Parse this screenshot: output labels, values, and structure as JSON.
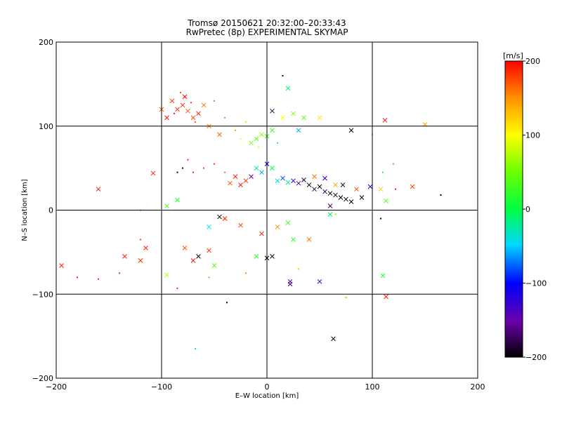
{
  "title_line1": "Tromsø 20150621 20:32:00–20:33:43",
  "title_line2": "RwPretec (8p) EXPERIMENTAL SKYMAP",
  "chart_data": {
    "type": "scatter",
    "xlabel": "E–W location [km]",
    "ylabel": "N–S location [km]",
    "xlim": [
      -200,
      200
    ],
    "ylim": [
      -200,
      200
    ],
    "xticks": [
      -200,
      -100,
      0,
      100,
      200
    ],
    "yticks": [
      -200,
      -100,
      0,
      100,
      200
    ],
    "x_tick_labels": [
      "−200",
      "−100",
      "0",
      "100",
      "200"
    ],
    "y_tick_labels": [
      "−200",
      "−100",
      "0",
      "100",
      "200"
    ],
    "grid": true,
    "colorbar": {
      "label": "[m/s]",
      "range": [
        -200,
        200
      ],
      "ticks": [
        -200,
        -100,
        0,
        100,
        200
      ],
      "tick_labels": [
        "−200",
        "−100",
        "0",
        "100",
        "200"
      ]
    },
    "points": [
      {
        "x": -85,
        "y": 120,
        "v": 180,
        "m": "x"
      },
      {
        "x": -80,
        "y": 125,
        "v": 190,
        "m": "x"
      },
      {
        "x": -75,
        "y": 118,
        "v": 170,
        "m": "x"
      },
      {
        "x": -90,
        "y": 130,
        "v": 185,
        "m": "x"
      },
      {
        "x": -70,
        "y": 110,
        "v": 175,
        "m": "x"
      },
      {
        "x": -60,
        "y": 125,
        "v": 160,
        "m": "x"
      },
      {
        "x": -95,
        "y": 110,
        "v": 195,
        "m": "x"
      },
      {
        "x": -78,
        "y": 135,
        "v": 200,
        "m": "x"
      },
      {
        "x": -65,
        "y": 115,
        "v": 185,
        "m": "x"
      },
      {
        "x": -100,
        "y": 120,
        "v": 170,
        "m": "x"
      },
      {
        "x": -55,
        "y": 100,
        "v": 150,
        "m": "x"
      },
      {
        "x": -45,
        "y": 90,
        "v": 165,
        "m": "x"
      },
      {
        "x": -88,
        "y": 115,
        "v": 190,
        "m": "d"
      },
      {
        "x": -82,
        "y": 140,
        "v": 175,
        "m": "d"
      },
      {
        "x": -72,
        "y": 128,
        "v": 180,
        "m": "d"
      },
      {
        "x": -68,
        "y": 105,
        "v": 170,
        "m": "d"
      },
      {
        "x": -50,
        "y": 130,
        "v": 160,
        "m": "d"
      },
      {
        "x": -40,
        "y": 110,
        "v": 155,
        "m": "d"
      },
      {
        "x": -30,
        "y": 95,
        "v": 140,
        "m": "d"
      },
      {
        "x": -20,
        "y": 105,
        "v": 120,
        "m": "d"
      },
      {
        "x": -10,
        "y": 85,
        "v": 40,
        "m": "x"
      },
      {
        "x": -5,
        "y": 90,
        "v": 60,
        "m": "x"
      },
      {
        "x": 0,
        "y": 88,
        "v": 30,
        "m": "x"
      },
      {
        "x": -15,
        "y": 80,
        "v": 50,
        "m": "x"
      },
      {
        "x": 5,
        "y": 95,
        "v": 20,
        "m": "x"
      },
      {
        "x": -8,
        "y": 75,
        "v": 80,
        "m": "d"
      },
      {
        "x": -25,
        "y": 85,
        "v": 90,
        "m": "d"
      },
      {
        "x": 10,
        "y": 80,
        "v": 10,
        "m": "d"
      },
      {
        "x": 15,
        "y": 110,
        "v": 100,
        "m": "x"
      },
      {
        "x": 25,
        "y": 115,
        "v": 60,
        "m": "x"
      },
      {
        "x": 35,
        "y": 110,
        "v": 40,
        "m": "x"
      },
      {
        "x": 50,
        "y": 110,
        "v": 110,
        "m": "x"
      },
      {
        "x": 5,
        "y": 118,
        "v": -180,
        "m": "x"
      },
      {
        "x": 30,
        "y": 95,
        "v": -60,
        "m": "x"
      },
      {
        "x": 20,
        "y": 145,
        "v": -10,
        "m": "x"
      },
      {
        "x": 15,
        "y": 160,
        "v": -200,
        "m": "d"
      },
      {
        "x": 80,
        "y": 95,
        "v": -200,
        "m": "x"
      },
      {
        "x": 100,
        "y": 90,
        "v": 140,
        "m": "d"
      },
      {
        "x": 112,
        "y": 107,
        "v": 190,
        "m": "x"
      },
      {
        "x": 150,
        "y": 102,
        "v": 140,
        "m": "x"
      },
      {
        "x": -10,
        "y": 50,
        "v": -20,
        "m": "x"
      },
      {
        "x": -5,
        "y": 45,
        "v": -60,
        "m": "x"
      },
      {
        "x": 0,
        "y": 55,
        "v": -100,
        "m": "x"
      },
      {
        "x": 5,
        "y": 50,
        "v": 0,
        "m": "x"
      },
      {
        "x": -15,
        "y": 40,
        "v": -150,
        "m": "x"
      },
      {
        "x": -20,
        "y": 35,
        "v": 180,
        "m": "x"
      },
      {
        "x": -25,
        "y": 30,
        "v": 200,
        "m": "x"
      },
      {
        "x": -30,
        "y": 40,
        "v": 190,
        "m": "x"
      },
      {
        "x": -35,
        "y": 32,
        "v": 170,
        "m": "x"
      },
      {
        "x": -40,
        "y": 45,
        "v": 160,
        "m": "d"
      },
      {
        "x": -50,
        "y": 55,
        "v": 180,
        "m": "d"
      },
      {
        "x": -60,
        "y": 50,
        "v": 175,
        "m": "d"
      },
      {
        "x": -70,
        "y": 45,
        "v": 190,
        "m": "d"
      },
      {
        "x": -75,
        "y": 60,
        "v": 185,
        "m": "d"
      },
      {
        "x": -80,
        "y": 50,
        "v": -190,
        "m": "d"
      },
      {
        "x": -85,
        "y": 45,
        "v": -200,
        "m": "d"
      },
      {
        "x": 10,
        "y": 35,
        "v": -40,
        "m": "x"
      },
      {
        "x": 15,
        "y": 38,
        "v": -80,
        "m": "x"
      },
      {
        "x": 20,
        "y": 33,
        "v": -20,
        "m": "x"
      },
      {
        "x": 25,
        "y": 35,
        "v": -130,
        "m": "x"
      },
      {
        "x": 30,
        "y": 32,
        "v": -160,
        "m": "x"
      },
      {
        "x": 35,
        "y": 36,
        "v": -190,
        "m": "x"
      },
      {
        "x": 40,
        "y": 30,
        "v": -200,
        "m": "x"
      },
      {
        "x": 45,
        "y": 25,
        "v": -180,
        "m": "x"
      },
      {
        "x": 50,
        "y": 28,
        "v": -200,
        "m": "x"
      },
      {
        "x": 55,
        "y": 22,
        "v": -170,
        "m": "x"
      },
      {
        "x": 60,
        "y": 20,
        "v": -200,
        "m": "x"
      },
      {
        "x": 65,
        "y": 18,
        "v": -190,
        "m": "x"
      },
      {
        "x": 70,
        "y": 15,
        "v": -200,
        "m": "x"
      },
      {
        "x": 75,
        "y": 13,
        "v": -200,
        "m": "x"
      },
      {
        "x": 80,
        "y": 10,
        "v": -200,
        "m": "x"
      },
      {
        "x": 90,
        "y": 15,
        "v": -200,
        "m": "x"
      },
      {
        "x": 60,
        "y": 5,
        "v": -170,
        "m": "x"
      },
      {
        "x": 72,
        "y": 30,
        "v": -200,
        "m": "x"
      },
      {
        "x": 55,
        "y": 38,
        "v": -110,
        "m": "x"
      },
      {
        "x": 45,
        "y": 40,
        "v": 160,
        "m": "x"
      },
      {
        "x": 65,
        "y": 30,
        "v": 140,
        "m": "x"
      },
      {
        "x": 85,
        "y": 25,
        "v": 170,
        "m": "x"
      },
      {
        "x": 98,
        "y": 28,
        "v": -120,
        "m": "x"
      },
      {
        "x": 108,
        "y": 25,
        "v": 120,
        "m": "x"
      },
      {
        "x": 113,
        "y": 11,
        "v": 30,
        "m": "x"
      },
      {
        "x": 138,
        "y": 28,
        "v": 175,
        "m": "x"
      },
      {
        "x": 110,
        "y": 45,
        "v": 20,
        "m": "d"
      },
      {
        "x": 120,
        "y": 55,
        "v": 150,
        "m": "d"
      },
      {
        "x": 165,
        "y": 18,
        "v": -200,
        "m": "d"
      },
      {
        "x": 122,
        "y": 25,
        "v": 190,
        "m": "d"
      },
      {
        "x": -160,
        "y": 25,
        "v": 190,
        "m": "x"
      },
      {
        "x": -108,
        "y": 44,
        "v": 190,
        "m": "x"
      },
      {
        "x": -95,
        "y": 5,
        "v": 40,
        "m": "x"
      },
      {
        "x": -85,
        "y": 12,
        "v": 10,
        "m": "x"
      },
      {
        "x": -105,
        "y": 0,
        "v": 100,
        "m": "d"
      },
      {
        "x": -120,
        "y": 0,
        "v": 180,
        "m": "d"
      },
      {
        "x": -195,
        "y": -66,
        "v": 190,
        "m": "x"
      },
      {
        "x": -135,
        "y": -55,
        "v": 190,
        "m": "x"
      },
      {
        "x": -115,
        "y": -45,
        "v": 190,
        "m": "x"
      },
      {
        "x": -120,
        "y": -60,
        "v": 185,
        "m": "x"
      },
      {
        "x": -140,
        "y": -75,
        "v": 180,
        "m": "d"
      },
      {
        "x": -180,
        "y": -80,
        "v": 190,
        "m": "d"
      },
      {
        "x": -160,
        "y": -82,
        "v": 185,
        "m": "d"
      },
      {
        "x": -120,
        "y": -35,
        "v": 180,
        "m": "d"
      },
      {
        "x": -95,
        "y": -77,
        "v": 70,
        "m": "x"
      },
      {
        "x": -85,
        "y": -93,
        "v": 190,
        "m": "d"
      },
      {
        "x": -78,
        "y": -45,
        "v": 170,
        "m": "x"
      },
      {
        "x": -70,
        "y": -60,
        "v": 190,
        "m": "x"
      },
      {
        "x": -65,
        "y": -55,
        "v": -200,
        "m": "x"
      },
      {
        "x": -55,
        "y": -48,
        "v": 180,
        "m": "x"
      },
      {
        "x": -50,
        "y": -66,
        "v": 40,
        "m": "x"
      },
      {
        "x": -55,
        "y": -20,
        "v": -40,
        "m": "x"
      },
      {
        "x": -45,
        "y": -8,
        "v": -200,
        "m": "x"
      },
      {
        "x": -40,
        "y": -10,
        "v": 190,
        "m": "x"
      },
      {
        "x": -25,
        "y": -18,
        "v": 180,
        "m": "x"
      },
      {
        "x": -5,
        "y": -28,
        "v": 185,
        "m": "x"
      },
      {
        "x": 0,
        "y": -57,
        "v": -200,
        "m": "x"
      },
      {
        "x": -10,
        "y": -55,
        "v": 10,
        "m": "x"
      },
      {
        "x": 5,
        "y": -55,
        "v": -200,
        "m": "x"
      },
      {
        "x": 10,
        "y": -20,
        "v": 150,
        "m": "x"
      },
      {
        "x": 20,
        "y": -15,
        "v": 30,
        "m": "x"
      },
      {
        "x": 25,
        "y": -35,
        "v": 20,
        "m": "x"
      },
      {
        "x": 40,
        "y": -35,
        "v": 160,
        "m": "x"
      },
      {
        "x": 22,
        "y": -85,
        "v": -150,
        "m": "x"
      },
      {
        "x": 22,
        "y": -88,
        "v": -170,
        "m": "x"
      },
      {
        "x": 50,
        "y": -85,
        "v": -130,
        "m": "x"
      },
      {
        "x": 63,
        "y": -153,
        "v": -200,
        "m": "x"
      },
      {
        "x": 75,
        "y": -104,
        "v": 40,
        "m": "d"
      },
      {
        "x": 110,
        "y": -78,
        "v": 10,
        "m": "x"
      },
      {
        "x": 113,
        "y": -103,
        "v": 190,
        "m": "x"
      },
      {
        "x": 60,
        "y": -5,
        "v": -10,
        "m": "x"
      },
      {
        "x": 65,
        "y": -5,
        "v": 50,
        "m": "d"
      },
      {
        "x": 108,
        "y": -10,
        "v": -200,
        "m": "d"
      },
      {
        "x": -68,
        "y": -165,
        "v": -10,
        "m": "d"
      },
      {
        "x": -38,
        "y": -110,
        "v": -200,
        "m": "d"
      },
      {
        "x": -55,
        "y": -80,
        "v": 150,
        "m": "d"
      },
      {
        "x": -20,
        "y": -75,
        "v": 150,
        "m": "d"
      },
      {
        "x": 30,
        "y": -70,
        "v": 60,
        "m": "d"
      }
    ]
  }
}
